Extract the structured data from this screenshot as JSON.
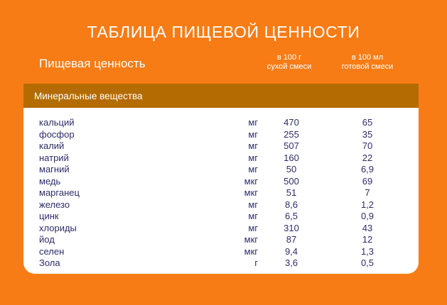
{
  "page": {
    "title": "ТАБЛИЦА ПИЩЕВОЙ ЦЕННОСТИ",
    "section_label": "Пищевая ценность",
    "columns": [
      {
        "line1": "в 100 г",
        "line2": "сухой смеси"
      },
      {
        "line1": "в 100 мл",
        "line2": "готовой смеси"
      }
    ]
  },
  "colors": {
    "background": "#F77C15",
    "group_band": "#B46B02",
    "card": "#FFFFFF",
    "heading_text": "#FFFFFF",
    "table_text": "#2D2C6A"
  },
  "table": {
    "group_header": "Минеральные вещества",
    "rows": [
      {
        "name": "кальций",
        "unit": "мг",
        "per100g": "470",
        "per100ml": "65"
      },
      {
        "name": "фосфор",
        "unit": "мг",
        "per100g": "255",
        "per100ml": "35"
      },
      {
        "name": "калий",
        "unit": "мг",
        "per100g": "507",
        "per100ml": "70"
      },
      {
        "name": "натрий",
        "unit": "мг",
        "per100g": "160",
        "per100ml": "22"
      },
      {
        "name": "магний",
        "unit": "мг",
        "per100g": "50",
        "per100ml": "6,9"
      },
      {
        "name": "медь",
        "unit": "мкг",
        "per100g": "500",
        "per100ml": "69"
      },
      {
        "name": "марганец",
        "unit": "мкг",
        "per100g": "51",
        "per100ml": "7"
      },
      {
        "name": "железо",
        "unit": "мг",
        "per100g": "8,6",
        "per100ml": "1,2"
      },
      {
        "name": "цинк",
        "unit": "мг",
        "per100g": "6,5",
        "per100ml": "0,9"
      },
      {
        "name": "хлориды",
        "unit": "мг",
        "per100g": "310",
        "per100ml": "43"
      },
      {
        "name": "йод",
        "unit": "мкг",
        "per100g": "87",
        "per100ml": "12"
      },
      {
        "name": "селен",
        "unit": "мкг",
        "per100g": "9,4",
        "per100ml": "1,3"
      },
      {
        "name": "Зола",
        "unit": "г",
        "per100g": "3,6",
        "per100ml": "0,5"
      }
    ]
  }
}
